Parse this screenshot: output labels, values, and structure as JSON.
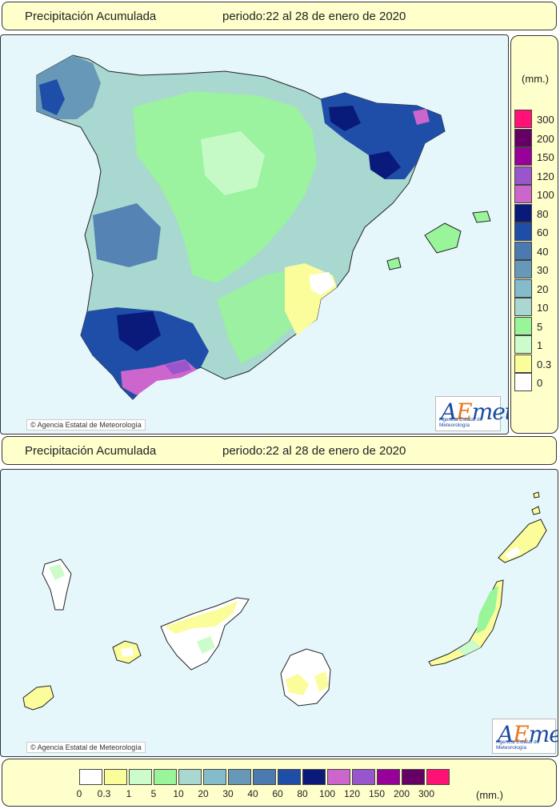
{
  "top_header": {
    "title": "Precipitación Acumulada",
    "period": "periodo:22 al 28 de enero de 2020"
  },
  "bottom_header": {
    "title": "Precipitación Acumulada",
    "period": "periodo:22 al 28 de enero de 2020"
  },
  "credit_text": "Agencia Estatal de Meteorología",
  "logo": {
    "text": "AEmet",
    "subtitle": "Agencia Estatal de Meteorología"
  },
  "units": "(mm.)",
  "scale": [
    {
      "label": "0",
      "color": "#ffffff"
    },
    {
      "label": "0.3",
      "color": "#fbfc9a"
    },
    {
      "label": "1",
      "color": "#ccfccc"
    },
    {
      "label": "5",
      "color": "#99f599"
    },
    {
      "label": "10",
      "color": "#a8d8d0"
    },
    {
      "label": "20",
      "color": "#84bccc"
    },
    {
      "label": "30",
      "color": "#6898b8"
    },
    {
      "label": "40",
      "color": "#4a7ab0"
    },
    {
      "label": "60",
      "color": "#1f4ea8"
    },
    {
      "label": "80",
      "color": "#0a1a7a"
    },
    {
      "label": "100",
      "color": "#cc66cc"
    },
    {
      "label": "120",
      "color": "#9955cc"
    },
    {
      "label": "150",
      "color": "#990099"
    },
    {
      "label": "200",
      "color": "#660066"
    },
    {
      "label": "300",
      "color": "#ff1177"
    }
  ]
}
